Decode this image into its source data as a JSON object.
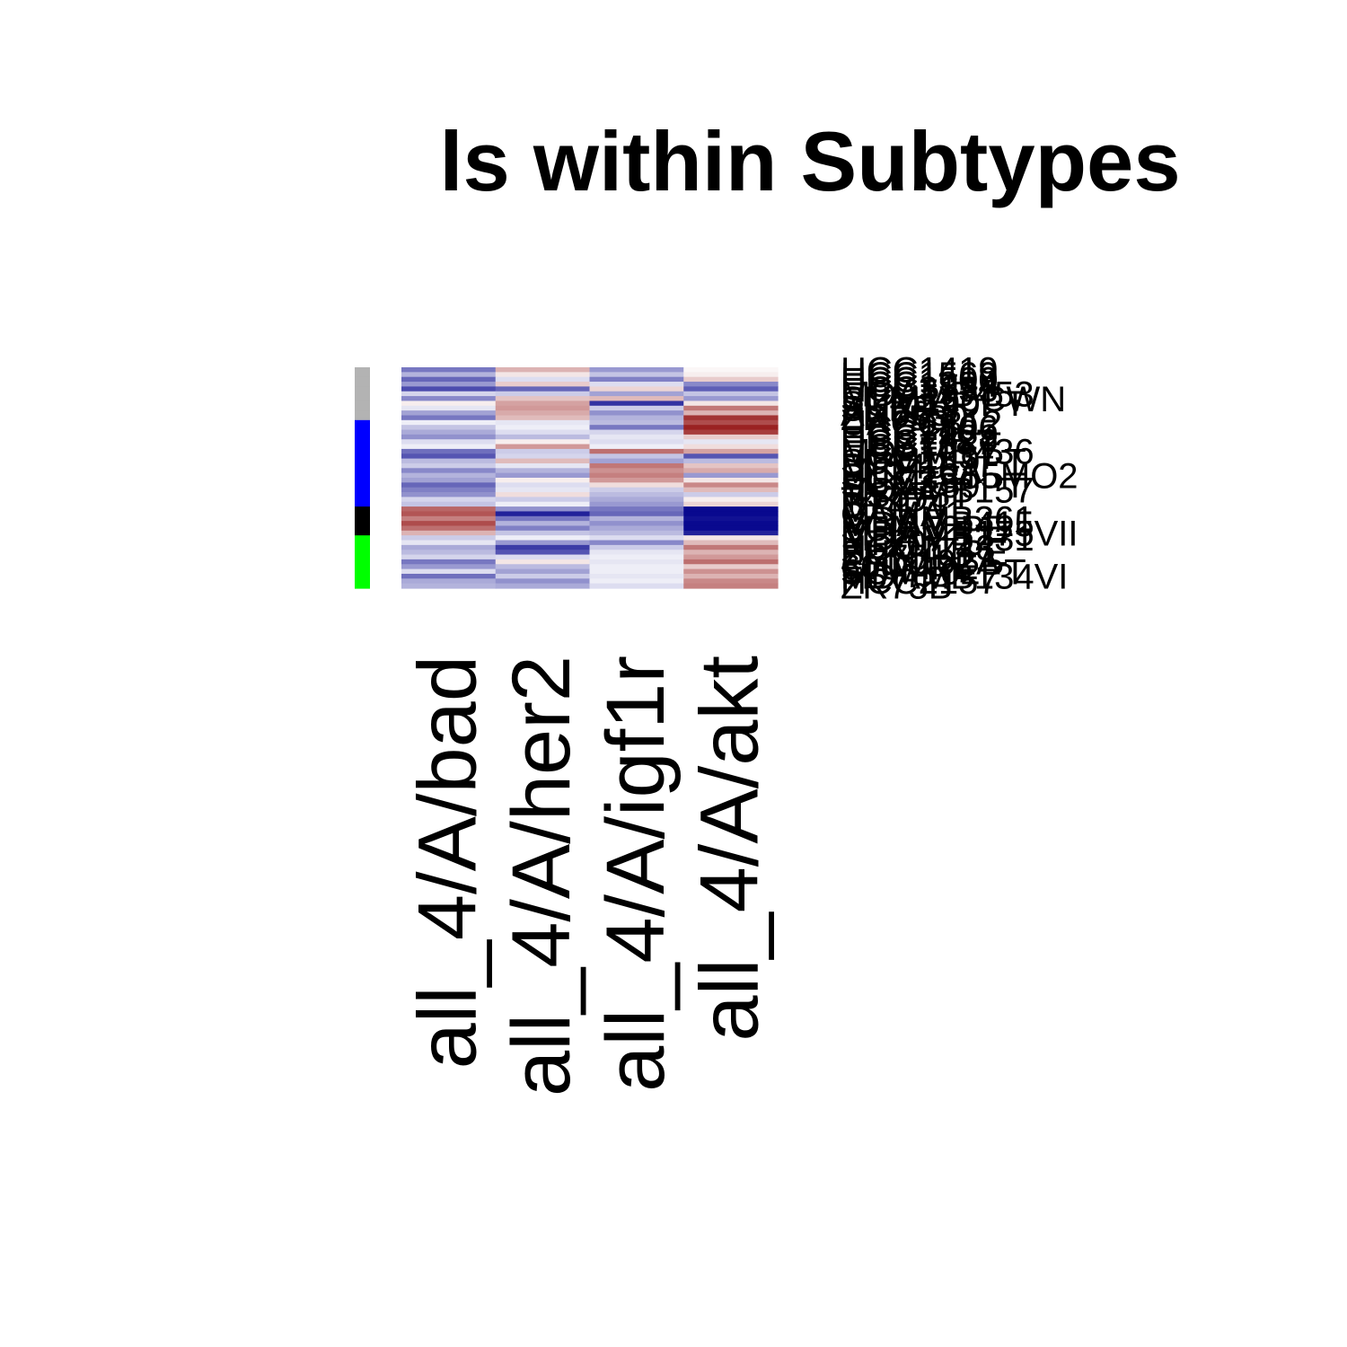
{
  "chart_data": {
    "type": "heatmap",
    "title": "ls within Subtypes",
    "columns": [
      "all_4/A/bad",
      "all_4/A/her2",
      "all_4/A/igf1r",
      "all_4/A/akt"
    ],
    "row_labels": [
      "HCC1419",
      "HCC1569",
      "HCC1500",
      "HCC1954",
      "HCC3153",
      "MDAMB453",
      "SUM225CWN",
      "SUM190PT",
      "SKBR3",
      "AU565",
      "ZR7530",
      "UACC812",
      "HCC1806",
      "HCC2185",
      "HCC1428",
      "HCC1187",
      "HCC70",
      "MDAMB436",
      "HCC1937",
      "SUM149PT",
      "BT549",
      "MCF10A",
      "SUM1315MO2",
      "HCC38",
      "SUM159PT",
      "MDAMB157",
      "HS578T",
      "T47D",
      "BT474",
      "MCF7",
      "CAMA1",
      "MDAMB361",
      "MDAMB415",
      "SUM52PE",
      "MDAMB175VII",
      "MDAMB231",
      "BT20",
      "HCC1143",
      "SUM44PE",
      "ZR751",
      "EFM192A",
      "600MPE",
      "SUM102PT",
      "MDAMB134VI",
      "HCC2157",
      "ZR75B"
    ],
    "subtype_colors": [
      "#b3b3b3",
      "#b3b3b3",
      "#b3b3b3",
      "#b3b3b3",
      "#b3b3b3",
      "#b3b3b3",
      "#b3b3b3",
      "#b3b3b3",
      "#b3b3b3",
      "#b3b3b3",
      "#b3b3b3",
      "#0000ff",
      "#0000ff",
      "#0000ff",
      "#0000ff",
      "#0000ff",
      "#0000ff",
      "#0000ff",
      "#0000ff",
      "#0000ff",
      "#0000ff",
      "#0000ff",
      "#0000ff",
      "#0000ff",
      "#0000ff",
      "#0000ff",
      "#0000ff",
      "#0000ff",
      "#0000ff",
      "#000000",
      "#000000",
      "#000000",
      "#000000",
      "#000000",
      "#000000",
      "#00ff00",
      "#00ff00",
      "#00ff00",
      "#00ff00",
      "#00ff00",
      "#00ff00",
      "#00ff00",
      "#00ff00",
      "#00ff00",
      "#00ff00",
      "#00ff00"
    ],
    "color_scale": {
      "low": "#00008b",
      "mid": "#ffffff",
      "high": "#8b0000",
      "min": -3,
      "max": 3
    },
    "values": [
      [
        -1.6,
        0.9,
        -1.2,
        0.1
      ],
      [
        -0.9,
        0.3,
        -0.7,
        0.2
      ],
      [
        -1.8,
        -0.4,
        -1.5,
        0.6
      ],
      [
        -1.2,
        0.6,
        -0.4,
        -1.4
      ],
      [
        -2.1,
        -1.8,
        0.5,
        -1.9
      ],
      [
        -0.5,
        -0.6,
        -1.1,
        -0.7
      ],
      [
        -1.4,
        0.7,
        0.8,
        -1.2
      ],
      [
        0.2,
        1.1,
        -2.4,
        0.3
      ],
      [
        -0.3,
        1.2,
        -0.6,
        1.6
      ],
      [
        -1.1,
        1.0,
        -1.3,
        0.9
      ],
      [
        -1.6,
        0.8,
        -0.9,
        2.4
      ],
      [
        -0.2,
        -0.3,
        -0.8,
        2.1
      ],
      [
        -0.7,
        -0.2,
        -1.6,
        2.6
      ],
      [
        -1.0,
        -0.4,
        -0.5,
        2.3
      ],
      [
        -1.3,
        -0.8,
        -0.3,
        0.6
      ],
      [
        -0.4,
        0.2,
        -0.4,
        -0.3
      ],
      [
        -0.2,
        1.2,
        -0.2,
        0.4
      ],
      [
        -1.7,
        -0.6,
        1.7,
        1.1
      ],
      [
        -2.0,
        -0.5,
        -0.7,
        -2.0
      ],
      [
        -0.8,
        0.8,
        -1.1,
        -0.8
      ],
      [
        -0.6,
        -0.3,
        1.6,
        0.7
      ],
      [
        -1.4,
        -0.9,
        1.3,
        1.0
      ],
      [
        -0.9,
        -1.2,
        1.5,
        -1.2
      ],
      [
        -1.1,
        0.2,
        1.2,
        0.3
      ],
      [
        -1.8,
        -0.4,
        0.4,
        1.4
      ],
      [
        -1.5,
        -0.3,
        -0.6,
        0.8
      ],
      [
        -1.3,
        0.4,
        -0.8,
        -0.6
      ],
      [
        -0.5,
        -0.6,
        -1.0,
        0.2
      ],
      [
        -0.7,
        -0.2,
        -1.2,
        0.5
      ],
      [
        1.8,
        -1.3,
        -1.6,
        -2.9
      ],
      [
        2.0,
        -2.6,
        -1.8,
        -2.9
      ],
      [
        1.5,
        -1.6,
        -0.9,
        -2.8
      ],
      [
        2.1,
        -0.9,
        -1.3,
        -2.9
      ],
      [
        1.7,
        -1.5,
        -1.0,
        -2.9
      ],
      [
        0.9,
        -0.7,
        -0.8,
        -2.6
      ],
      [
        -0.6,
        -0.2,
        -0.4,
        0.3
      ],
      [
        -0.3,
        -1.2,
        -1.4,
        0.8
      ],
      [
        -1.0,
        -2.3,
        -0.6,
        1.6
      ],
      [
        -0.8,
        -2.0,
        -0.3,
        0.9
      ],
      [
        -0.5,
        -0.4,
        -0.2,
        1.2
      ],
      [
        -1.6,
        0.3,
        -0.3,
        1.7
      ],
      [
        -1.2,
        -0.8,
        -0.2,
        0.6
      ],
      [
        -0.4,
        -1.1,
        -0.2,
        1.3
      ],
      [
        -1.7,
        -0.6,
        -0.3,
        0.9
      ],
      [
        -1.0,
        -1.3,
        -0.2,
        1.4
      ],
      [
        -0.9,
        -1.0,
        -0.4,
        1.5
      ]
    ]
  }
}
